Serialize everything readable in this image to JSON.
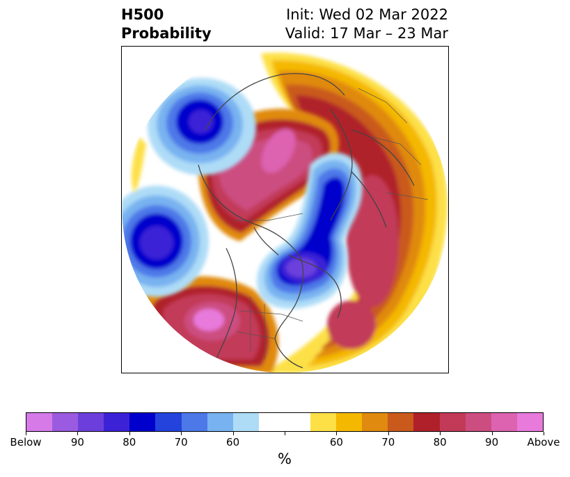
{
  "header": {
    "title_line1": "H500",
    "title_line2": "Probability",
    "init_text": "Init: Wed 02 Mar 2022",
    "valid_text": "Valid: 17 Mar – 23 Mar"
  },
  "colorbar": {
    "unit": "%",
    "colors": [
      "#d67ae8",
      "#9b5be0",
      "#6c3fdc",
      "#3b22d6",
      "#0000cc",
      "#2343dc",
      "#4d78e8",
      "#78b2f0",
      "#aedcf7",
      "#ffffff",
      "#ffffff",
      "#fde046",
      "#f4b800",
      "#e08a10",
      "#c95a1c",
      "#b0202a",
      "#c23a58",
      "#cc4d80",
      "#dd62b0",
      "#e87adc"
    ],
    "tick_labels": [
      "Below",
      "90",
      "80",
      "70",
      "60",
      "",
      "60",
      "70",
      "80",
      "90",
      "Above"
    ]
  },
  "map": {
    "projection": "north-polar stereographic",
    "colors": {
      "below_deep": "#0000cc",
      "below_purple": "#6c3fdc",
      "above_magenta": "#dd62b0",
      "above_red": "#b0202a",
      "above_yellow": "#fde046",
      "coastline": "#444444"
    }
  }
}
